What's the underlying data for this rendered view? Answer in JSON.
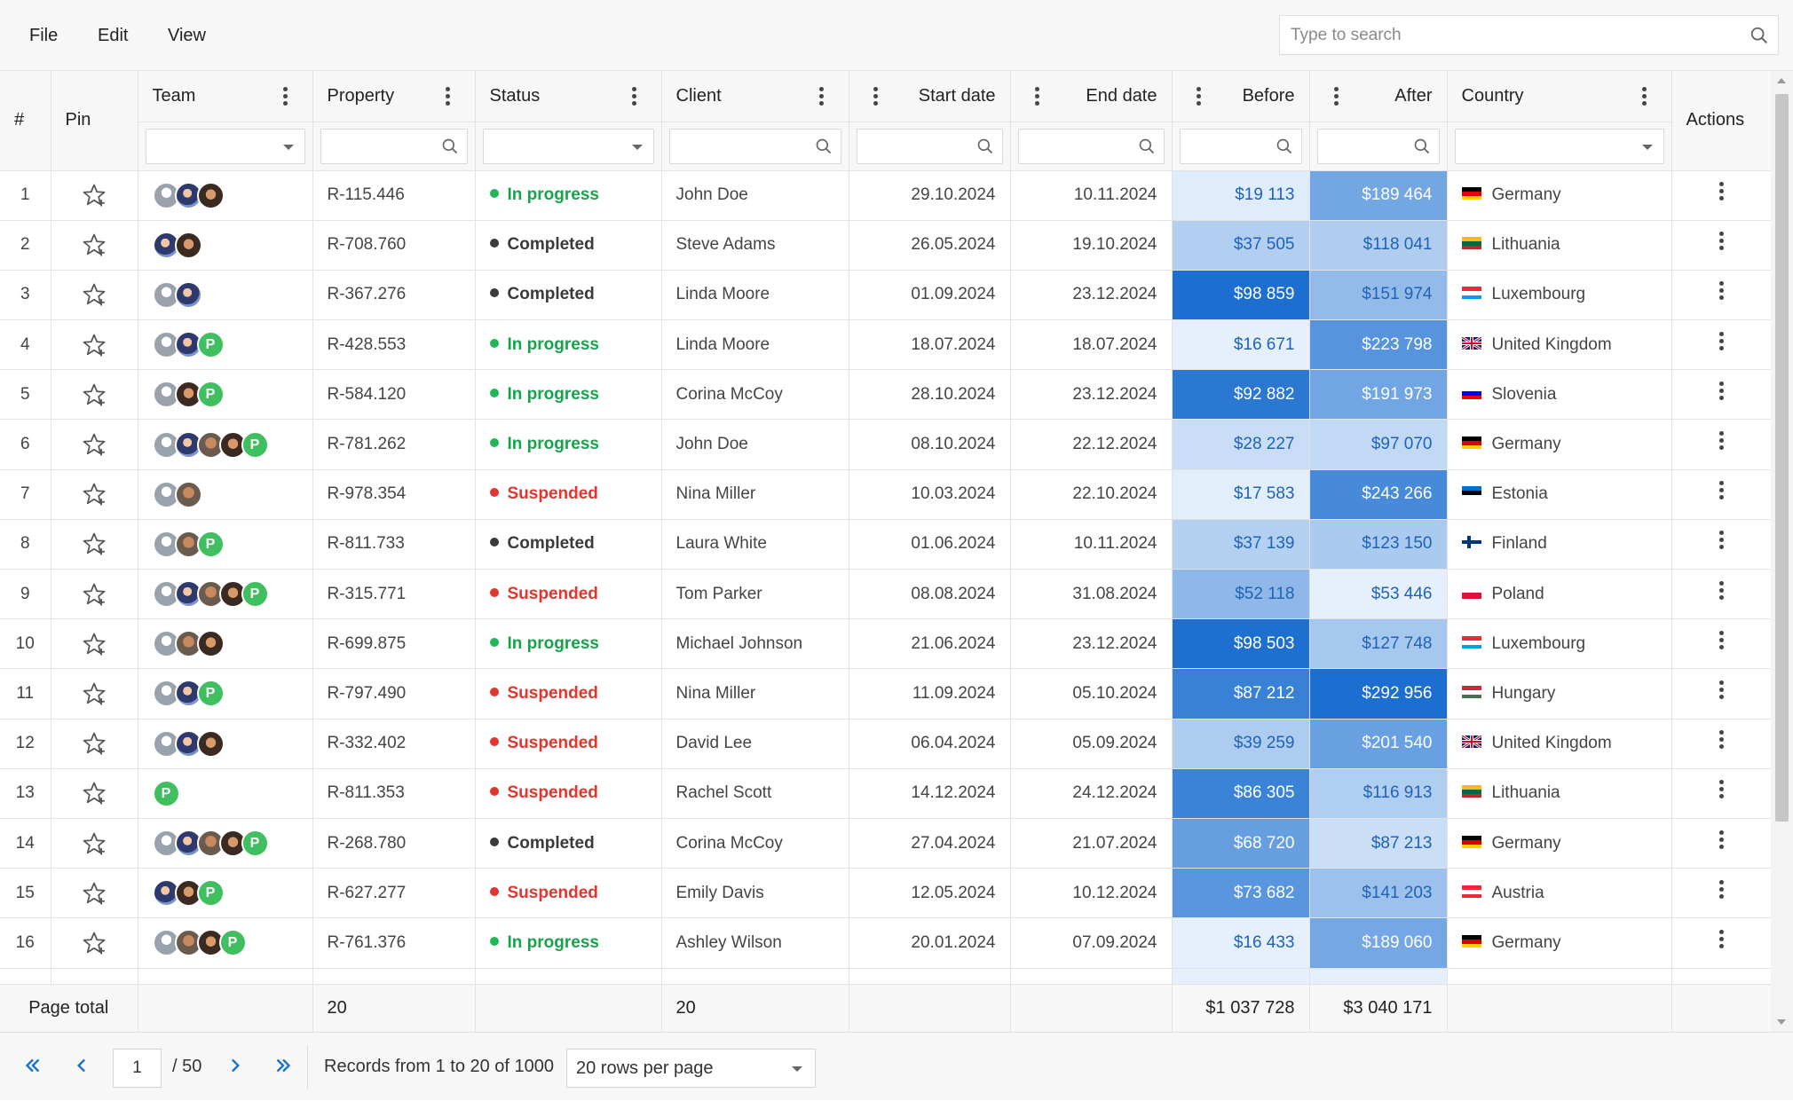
{
  "menu": {
    "file": "File",
    "edit": "Edit",
    "view": "View"
  },
  "search": {
    "placeholder": "Type to search"
  },
  "columns": {
    "index": "#",
    "pin": "Pin",
    "team": "Team",
    "property": "Property",
    "status": "Status",
    "client": "Client",
    "start_date": "Start date",
    "end_date": "End date",
    "before": "Before",
    "after": "After",
    "country": "Country",
    "actions": "Actions"
  },
  "colors": {
    "in_progress": "#16a34a",
    "completed": "#3a3a3a",
    "suspended": "#e0362f",
    "heat_low": "#e6f0fc",
    "heat_high": "#1c6fd0"
  },
  "rows": [
    {
      "n": "1",
      "team": [
        "a1",
        "a2",
        "a3"
      ],
      "property": "R-115.446",
      "status": "In progress",
      "client": "John Doe",
      "start": "29.10.2024",
      "end": "10.11.2024",
      "before": "$19 113",
      "after": "$189 464",
      "country": "Germany",
      "flag": "de"
    },
    {
      "n": "2",
      "team": [
        "a2",
        "a3"
      ],
      "property": "R-708.760",
      "status": "Completed",
      "client": "Steve Adams",
      "start": "26.05.2024",
      "end": "19.10.2024",
      "before": "$37 505",
      "after": "$118 041",
      "country": "Lithuania",
      "flag": "lt"
    },
    {
      "n": "3",
      "team": [
        "a1",
        "a2"
      ],
      "property": "R-367.276",
      "status": "Completed",
      "client": "Linda Moore",
      "start": "01.09.2024",
      "end": "23.12.2024",
      "before": "$98 859",
      "after": "$151 974",
      "country": "Luxembourg",
      "flag": "lu"
    },
    {
      "n": "4",
      "team": [
        "a1",
        "a2",
        "a5"
      ],
      "property": "R-428.553",
      "status": "In progress",
      "client": "Linda Moore",
      "start": "18.07.2024",
      "end": "18.07.2024",
      "before": "$16 671",
      "after": "$223 798",
      "country": "United Kingdom",
      "flag": "gb"
    },
    {
      "n": "5",
      "team": [
        "a1",
        "a3",
        "a5"
      ],
      "property": "R-584.120",
      "status": "In progress",
      "client": "Corina McCoy",
      "start": "28.10.2024",
      "end": "23.12.2024",
      "before": "$92 882",
      "after": "$191 973",
      "country": "Slovenia",
      "flag": "si"
    },
    {
      "n": "6",
      "team": [
        "a1",
        "a2",
        "a4",
        "a3",
        "a5"
      ],
      "property": "R-781.262",
      "status": "In progress",
      "client": "John Doe",
      "start": "08.10.2024",
      "end": "22.12.2024",
      "before": "$28 227",
      "after": "$97 070",
      "country": "Germany",
      "flag": "de"
    },
    {
      "n": "7",
      "team": [
        "a1",
        "a4"
      ],
      "property": "R-978.354",
      "status": "Suspended",
      "client": "Nina Miller",
      "start": "10.03.2024",
      "end": "22.10.2024",
      "before": "$17 583",
      "after": "$243 266",
      "country": "Estonia",
      "flag": "ee"
    },
    {
      "n": "8",
      "team": [
        "a1",
        "a4",
        "a5"
      ],
      "property": "R-811.733",
      "status": "Completed",
      "client": "Laura White",
      "start": "01.06.2024",
      "end": "10.11.2024",
      "before": "$37 139",
      "after": "$123 150",
      "country": "Finland",
      "flag": "fi"
    },
    {
      "n": "9",
      "team": [
        "a1",
        "a2",
        "a4",
        "a3",
        "a5"
      ],
      "property": "R-315.771",
      "status": "Suspended",
      "client": "Tom Parker",
      "start": "08.08.2024",
      "end": "31.08.2024",
      "before": "$52 118",
      "after": "$53 446",
      "country": "Poland",
      "flag": "pl"
    },
    {
      "n": "10",
      "team": [
        "a1",
        "a4",
        "a3"
      ],
      "property": "R-699.875",
      "status": "In progress",
      "client": "Michael Johnson",
      "start": "21.06.2024",
      "end": "23.12.2024",
      "before": "$98 503",
      "after": "$127 748",
      "country": "Luxembourg",
      "flag": "lu"
    },
    {
      "n": "11",
      "team": [
        "a1",
        "a2",
        "a5"
      ],
      "property": "R-797.490",
      "status": "Suspended",
      "client": "Nina Miller",
      "start": "11.09.2024",
      "end": "05.10.2024",
      "before": "$87 212",
      "after": "$292 956",
      "country": "Hungary",
      "flag": "hu"
    },
    {
      "n": "12",
      "team": [
        "a1",
        "a2",
        "a3"
      ],
      "property": "R-332.402",
      "status": "Suspended",
      "client": "David Lee",
      "start": "06.04.2024",
      "end": "05.09.2024",
      "before": "$39 259",
      "after": "$201 540",
      "country": "United Kingdom",
      "flag": "gb"
    },
    {
      "n": "13",
      "team": [
        "a5"
      ],
      "property": "R-811.353",
      "status": "Suspended",
      "client": "Rachel Scott",
      "start": "14.12.2024",
      "end": "24.12.2024",
      "before": "$86 305",
      "after": "$116 913",
      "country": "Lithuania",
      "flag": "lt"
    },
    {
      "n": "14",
      "team": [
        "a1",
        "a2",
        "a4",
        "a3",
        "a5"
      ],
      "property": "R-268.780",
      "status": "Completed",
      "client": "Corina McCoy",
      "start": "27.04.2024",
      "end": "21.07.2024",
      "before": "$68 720",
      "after": "$87 213",
      "country": "Germany",
      "flag": "de"
    },
    {
      "n": "15",
      "team": [
        "a2",
        "a3",
        "a5"
      ],
      "property": "R-627.277",
      "status": "Suspended",
      "client": "Emily Davis",
      "start": "12.05.2024",
      "end": "10.12.2024",
      "before": "$73 682",
      "after": "$141 203",
      "country": "Austria",
      "flag": "at"
    },
    {
      "n": "16",
      "team": [
        "a1",
        "a4",
        "a3",
        "a5"
      ],
      "property": "R-761.376",
      "status": "In progress",
      "client": "Ashley Wilson",
      "start": "20.01.2024",
      "end": "07.09.2024",
      "before": "$16 433",
      "after": "$189 060",
      "country": "Germany",
      "flag": "de"
    }
  ],
  "footer": {
    "label": "Page total",
    "property_count": "20",
    "client_count": "20",
    "before_total": "$1 037 728",
    "after_total": "$3 040 171"
  },
  "pager": {
    "current_page": "1",
    "total_pages": "/ 50",
    "records": "Records from 1 to 20 of 1000",
    "rows_per_page": "20 rows per page"
  }
}
